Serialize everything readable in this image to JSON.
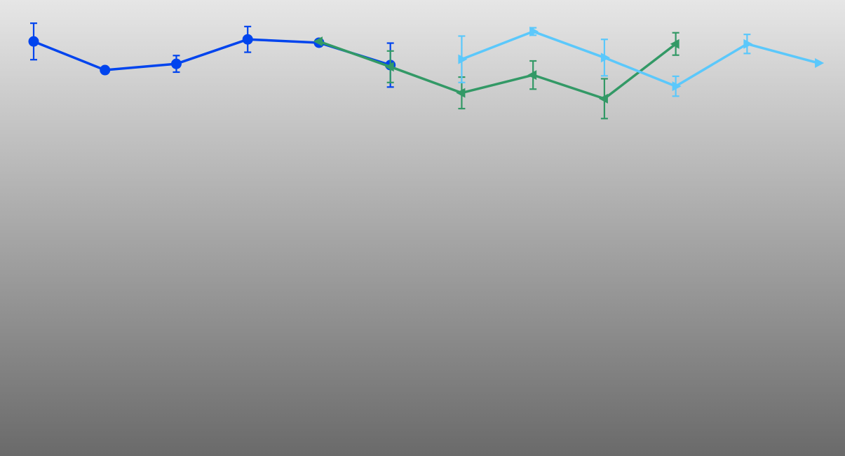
{
  "chart_data": {
    "type": "line",
    "title": "",
    "xlabel": "",
    "ylabel": "",
    "grid": false,
    "legend": "none",
    "xlim": [
      0,
      11.4
    ],
    "ylim": [
      -100,
      10
    ],
    "series": [
      {
        "color": "#0044ee",
        "marker": "circle",
        "points": [
          {
            "x": 0.0,
            "y": 0.0,
            "err": 4.4
          },
          {
            "x": 1.0,
            "y": -6.9,
            "err": 0.0
          },
          {
            "x": 2.0,
            "y": -5.4,
            "err": 2.0
          },
          {
            "x": 3.0,
            "y": 0.5,
            "err": 3.1
          },
          {
            "x": 4.0,
            "y": -0.3,
            "err": 0.7
          },
          {
            "x": 5.0,
            "y": -5.7,
            "err": 5.3
          }
        ]
      },
      {
        "color": "#339966",
        "marker": "triangle-left",
        "points": [
          {
            "x": 4.0,
            "y": 0.0,
            "err": 0.0
          },
          {
            "x": 5.0,
            "y": -6.1,
            "err": 3.8
          },
          {
            "x": 6.0,
            "y": -12.4,
            "err": 3.8
          },
          {
            "x": 7.0,
            "y": -8.1,
            "err": 3.4
          },
          {
            "x": 8.0,
            "y": -13.8,
            "err": 4.8
          },
          {
            "x": 9.0,
            "y": -0.6,
            "err": 2.7
          }
        ]
      },
      {
        "color": "#5bc8fb",
        "marker": "triangle-right",
        "points": [
          {
            "x": 6.0,
            "y": -4.3,
            "err": 5.6
          },
          {
            "x": 7.0,
            "y": 2.4,
            "err": 0.9
          },
          {
            "x": 8.0,
            "y": -3.9,
            "err": 4.4
          },
          {
            "x": 9.0,
            "y": -10.8,
            "err": 2.4
          },
          {
            "x": 10.0,
            "y": -0.6,
            "err": 2.3
          },
          {
            "x": 11.0,
            "y": -5.2,
            "err": 0.0
          }
        ]
      }
    ]
  }
}
